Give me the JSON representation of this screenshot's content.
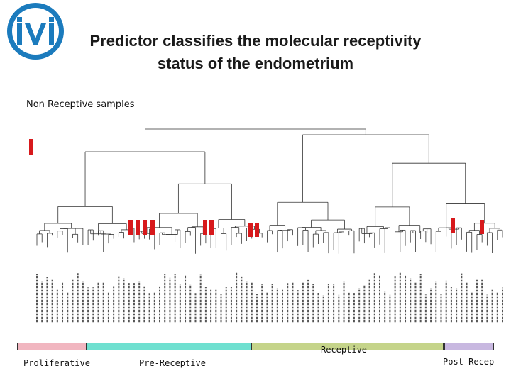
{
  "logo": {
    "text": "IVI",
    "color": "#1b7bbd"
  },
  "title": {
    "line1": "Predictor classifies the molecular receptivity",
    "line2": "status of the endometrium"
  },
  "subtitle": "Non Receptive samples",
  "colors": {
    "tree": "#333333",
    "marker": "#d7191c",
    "proliferative": "#f1b6c0",
    "pre_receptive": "#6fe0d0",
    "receptive": "#c5d48a",
    "post_receptive": "#c8b8e0"
  },
  "phases": [
    {
      "label": "Proliferative",
      "color_key": "proliferative"
    },
    {
      "label": "Pre-Receptive",
      "color_key": "pre_receptive"
    },
    {
      "label": "Receptive",
      "color_key": "receptive"
    },
    {
      "label": "Post-Recep",
      "color_key": "post_receptive"
    }
  ],
  "sample_count": 92,
  "non_receptive_marker_count": 11
}
